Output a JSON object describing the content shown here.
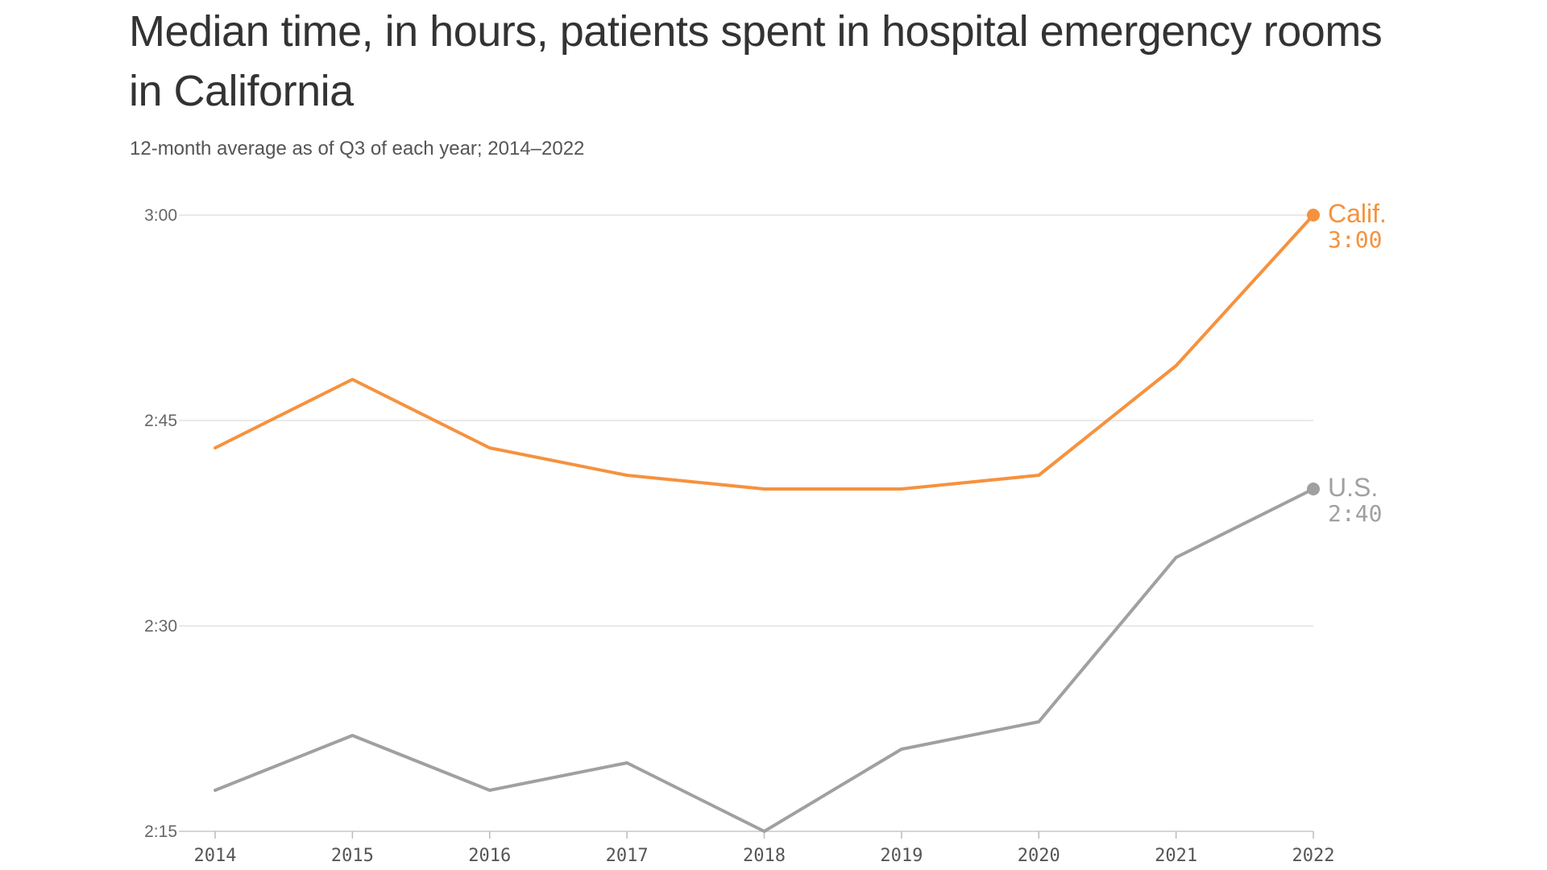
{
  "chart_data": {
    "type": "line",
    "title": "Median time, in hours, patients spent in hospital emergency rooms in California",
    "subtitle": "12-month average as of Q3 of each year; 2014–2022",
    "x": [
      "2014",
      "2015",
      "2016",
      "2017",
      "2018",
      "2019",
      "2020",
      "2021",
      "2022"
    ],
    "ylim": [
      135,
      180
    ],
    "y_ticks": [
      {
        "value": 180,
        "label": "3:00"
      },
      {
        "value": 165,
        "label": "2:45"
      },
      {
        "value": 150,
        "label": "2:30"
      },
      {
        "value": 135,
        "label": "2:15"
      }
    ],
    "grid": true,
    "series": [
      {
        "name": "Calif.",
        "end_label": "3:00",
        "color": "#f5923e",
        "values": [
          163,
          168,
          163,
          161,
          160,
          160,
          161,
          169,
          180
        ]
      },
      {
        "name": "U.S.",
        "end_label": "2:40",
        "color": "#a0a0a0",
        "values": [
          138,
          142,
          138,
          140,
          135,
          141,
          143,
          155,
          160
        ]
      }
    ]
  }
}
